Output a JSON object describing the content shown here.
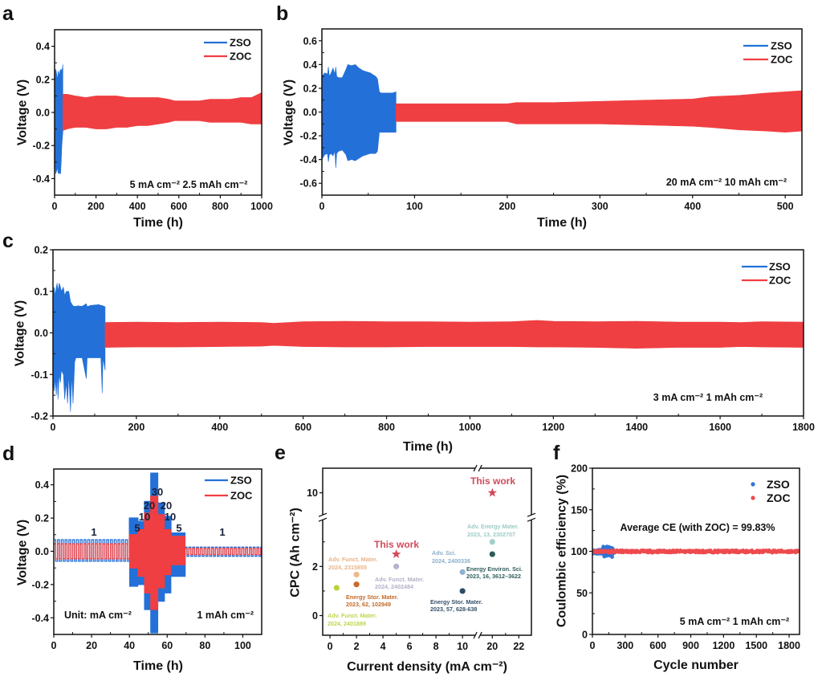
{
  "chart_data": [
    {
      "panel": "a",
      "type": "area",
      "title": "",
      "xlabel": "Time (h)",
      "ylabel": "Voltage (V)",
      "xlim": [
        0,
        1000
      ],
      "ylim": [
        -0.5,
        0.5
      ],
      "grid": false,
      "legend": "top-right",
      "xticks": [
        0,
        200,
        400,
        600,
        800,
        1000
      ],
      "xtick_labels": [
        "0",
        "200",
        "400",
        "600",
        "800",
        "1000"
      ],
      "yticks": [
        -0.4,
        -0.2,
        0,
        0.2,
        0.4
      ],
      "ytick_labels": [
        "-0.4",
        "-0.2",
        "0.0",
        "0.2",
        "0.4"
      ],
      "annotation": "5 mA cm⁻² 2.5 mAh cm⁻²",
      "series": [
        {
          "name": "ZSO",
          "color": "#2370d8",
          "x": [
            0,
            2,
            5,
            8,
            11,
            14,
            17,
            20,
            23,
            26,
            29,
            32,
            35,
            38,
            40
          ],
          "upper": [
            0.1,
            0.25,
            0.26,
            0.25,
            0.22,
            0.2,
            0.25,
            0.24,
            0.22,
            0.25,
            0.26,
            0.25,
            0.26,
            0.27,
            0.29
          ],
          "lower": [
            -0.15,
            -0.3,
            -0.37,
            -0.36,
            -0.35,
            -0.33,
            -0.37,
            -0.36,
            -0.37,
            -0.37,
            -0.37,
            -0.3,
            -0.2,
            -0.15,
            -0.12
          ]
        },
        {
          "name": "ZOC",
          "color": "#ef3f42",
          "x": [
            40,
            60,
            100,
            150,
            200,
            250,
            300,
            350,
            400,
            450,
            500,
            550,
            580,
            650,
            700,
            750,
            800,
            850,
            900,
            950,
            1000
          ],
          "upper": [
            0.11,
            0.11,
            0.1,
            0.09,
            0.1,
            0.1,
            0.1,
            0.09,
            0.09,
            0.09,
            0.09,
            0.08,
            0.07,
            0.07,
            0.07,
            0.08,
            0.08,
            0.08,
            0.09,
            0.09,
            0.12
          ],
          "lower": [
            -0.11,
            -0.1,
            -0.09,
            -0.09,
            -0.1,
            -0.1,
            -0.09,
            -0.09,
            -0.08,
            -0.08,
            -0.07,
            -0.06,
            -0.05,
            -0.05,
            -0.05,
            -0.06,
            -0.06,
            -0.06,
            -0.06,
            -0.07,
            -0.07
          ]
        }
      ]
    },
    {
      "panel": "b",
      "type": "area",
      "title": "",
      "xlabel": "Time (h)",
      "ylabel": "Voltage (V)",
      "xlim": [
        0,
        518
      ],
      "ylim": [
        -0.7,
        0.7
      ],
      "grid": false,
      "legend": "top-right",
      "xticks": [
        0,
        100,
        200,
        300,
        400,
        500
      ],
      "xtick_labels": [
        "0",
        "100",
        "200",
        "300",
        "400",
        "500"
      ],
      "yticks": [
        -0.6,
        -0.4,
        -0.2,
        0,
        0.2,
        0.4,
        0.6
      ],
      "ytick_labels": [
        "-0.6",
        "-0.4",
        "-0.2",
        "0.0",
        "0.2",
        "0.4",
        "0.6"
      ],
      "annotation": "20 mA cm⁻² 10 mAh cm⁻²",
      "series": [
        {
          "name": "ZSO",
          "color": "#2370d8",
          "x": [
            0,
            3,
            6,
            7,
            8,
            10,
            12,
            14,
            15,
            16,
            18,
            22,
            26,
            28,
            32,
            36,
            40,
            44,
            48,
            52,
            58,
            60,
            62,
            64,
            70,
            76,
            80
          ],
          "upper": [
            0.3,
            0.33,
            0.32,
            0.38,
            0.3,
            0.33,
            0.37,
            0.32,
            0.38,
            0.3,
            0.29,
            0.29,
            0.36,
            0.4,
            0.39,
            0.4,
            0.37,
            0.35,
            0.34,
            0.33,
            0.3,
            0.28,
            0.17,
            0.16,
            0.16,
            0.16,
            0.17
          ],
          "lower": [
            -0.4,
            -0.36,
            -0.35,
            -0.42,
            -0.36,
            -0.35,
            -0.37,
            -0.33,
            -0.47,
            -0.35,
            -0.33,
            -0.32,
            -0.36,
            -0.41,
            -0.4,
            -0.41,
            -0.39,
            -0.37,
            -0.36,
            -0.35,
            -0.35,
            -0.33,
            -0.17,
            -0.17,
            -0.17,
            -0.17,
            -0.17
          ]
        },
        {
          "name": "ZOC",
          "color": "#ef3f42",
          "x": [
            80,
            100,
            150,
            200,
            210,
            250,
            300,
            350,
            400,
            420,
            450,
            480,
            500,
            518
          ],
          "upper": [
            0.07,
            0.07,
            0.07,
            0.07,
            0.08,
            0.08,
            0.09,
            0.1,
            0.11,
            0.13,
            0.14,
            0.16,
            0.17,
            0.18
          ],
          "lower": [
            -0.08,
            -0.08,
            -0.08,
            -0.08,
            -0.1,
            -0.1,
            -0.1,
            -0.11,
            -0.12,
            -0.13,
            -0.15,
            -0.16,
            -0.17,
            -0.16
          ]
        }
      ]
    },
    {
      "panel": "c",
      "type": "area",
      "title": "",
      "xlabel": "Time (h)",
      "ylabel": "Voltage (V)",
      "xlim": [
        0,
        1800
      ],
      "ylim": [
        -0.2,
        0.2
      ],
      "grid": false,
      "legend": "top-right",
      "xticks": [
        0,
        200,
        400,
        600,
        800,
        1000,
        1200,
        1400,
        1600,
        1800
      ],
      "xtick_labels": [
        "0",
        "200",
        "400",
        "600",
        "800",
        "1000",
        "1200",
        "1400",
        "1600",
        "1800"
      ],
      "yticks": [
        -0.2,
        -0.1,
        0,
        0.1,
        0.2
      ],
      "ytick_labels": [
        "-0.2",
        "-0.1",
        "0.0",
        "0.1",
        "0.2"
      ],
      "annotation": "3 mA cm⁻² 1 mAh cm⁻²",
      "series": [
        {
          "name": "ZSO",
          "color": "#2370d8",
          "x": [
            0,
            3,
            5,
            8,
            10,
            12,
            15,
            18,
            20,
            25,
            28,
            32,
            35,
            38,
            42,
            45,
            48,
            52,
            55,
            60,
            70,
            80,
            82,
            90,
            100,
            110,
            115,
            118,
            120,
            125
          ],
          "upper": [
            0.1,
            0.11,
            0.09,
            0.11,
            0.12,
            0.1,
            0.12,
            0.11,
            0.1,
            0.11,
            0.09,
            0.1,
            0.1,
            0.1,
            0.075,
            0.07,
            0.065,
            0.064,
            0.064,
            0.065,
            0.064,
            0.07,
            0.063,
            0.066,
            0.067,
            0.068,
            0.066,
            0.066,
            0.065,
            0.063
          ],
          "lower": [
            -0.12,
            -0.14,
            -0.11,
            -0.15,
            -0.1,
            -0.16,
            -0.1,
            -0.12,
            -0.09,
            -0.1,
            -0.16,
            -0.12,
            -0.17,
            -0.1,
            -0.19,
            -0.1,
            -0.17,
            -0.07,
            -0.06,
            -0.06,
            -0.06,
            -0.11,
            -0.06,
            -0.06,
            -0.06,
            -0.06,
            -0.06,
            -0.145,
            -0.06,
            -0.09
          ]
        },
        {
          "name": "ZOC",
          "color": "#ef3f42",
          "x": [
            125,
            200,
            300,
            400,
            500,
            530,
            600,
            700,
            800,
            900,
            1000,
            1100,
            1160,
            1200,
            1300,
            1400,
            1500,
            1600,
            1650,
            1700,
            1800
          ],
          "upper": [
            0.025,
            0.026,
            0.025,
            0.026,
            0.025,
            0.023,
            0.027,
            0.028,
            0.027,
            0.027,
            0.026,
            0.027,
            0.03,
            0.028,
            0.027,
            0.028,
            0.026,
            0.026,
            0.025,
            0.027,
            0.026
          ],
          "lower": [
            -0.035,
            -0.034,
            -0.034,
            -0.033,
            -0.032,
            -0.03,
            -0.033,
            -0.034,
            -0.034,
            -0.033,
            -0.033,
            -0.033,
            -0.034,
            -0.034,
            -0.035,
            -0.037,
            -0.035,
            -0.035,
            -0.033,
            -0.034,
            -0.035
          ]
        }
      ]
    },
    {
      "panel": "d",
      "type": "line",
      "title": "",
      "xlabel": "Time (h)",
      "ylabel": "Voltage (V)",
      "xlim": [
        0,
        110
      ],
      "ylim": [
        -0.5,
        0.495
      ],
      "grid": false,
      "legend": "top-right",
      "xticks": [
        0,
        20,
        40,
        60,
        80,
        100
      ],
      "xtick_labels": [
        "0",
        "20",
        "40",
        "60",
        "80",
        "100"
      ],
      "yticks": [
        -0.4,
        -0.2,
        0,
        0.2,
        0.4
      ],
      "ytick_labels": [
        "-0.4",
        "-0.2",
        "0.0",
        "0.2",
        "0.4"
      ],
      "unit_note": "Unit: mA cm⁻²",
      "capacity_note": "1 mAh cm⁻²",
      "current_labels": [
        "1",
        "5",
        "10",
        "20",
        "30",
        "20",
        "10",
        "5",
        "1"
      ],
      "series": [
        {
          "name": "ZSO",
          "color": "#2370d8",
          "segments": [
            {
              "t": [
                0,
                40
              ],
              "current": 1,
              "upper": 0.07,
              "lower": -0.06
            },
            {
              "t": [
                40,
                44.5
              ],
              "current": 5,
              "upper": 0.2,
              "lower": -0.21
            },
            {
              "t": [
                44.5,
                48
              ],
              "current": 10,
              "upper": 0.18,
              "lower": -0.2
            },
            {
              "t": [
                48,
                51.3
              ],
              "current": 20,
              "upper": 0.3,
              "lower": -0.35
            },
            {
              "t": [
                51.3,
                55
              ],
              "current": 30,
              "upper": 0.47,
              "lower": -0.49
            },
            {
              "t": [
                55,
                58.5
              ],
              "current": 20,
              "upper": 0.29,
              "lower": -0.3
            },
            {
              "t": [
                58.5,
                62
              ],
              "current": 10,
              "upper": 0.21,
              "lower": -0.25
            },
            {
              "t": [
                62,
                69.5
              ],
              "current": 5,
              "upper": 0.11,
              "lower": -0.15
            },
            {
              "t": [
                69.5,
                110
              ],
              "current": 1,
              "upper": 0.025,
              "lower": -0.03
            }
          ]
        },
        {
          "name": "ZOC",
          "color": "#ef3f42",
          "segments": [
            {
              "t": [
                0,
                40
              ],
              "current": 1,
              "upper": 0.045,
              "lower": -0.045
            },
            {
              "t": [
                40,
                44.5
              ],
              "current": 5,
              "upper": 0.1,
              "lower": -0.1
            },
            {
              "t": [
                44.5,
                48
              ],
              "current": 10,
              "upper": 0.13,
              "lower": -0.15
            },
            {
              "t": [
                48,
                51.3
              ],
              "current": 20,
              "upper": 0.23,
              "lower": -0.25
            },
            {
              "t": [
                51.3,
                55
              ],
              "current": 30,
              "upper": 0.33,
              "lower": -0.35
            },
            {
              "t": [
                55,
                58.5
              ],
              "current": 20,
              "upper": 0.22,
              "lower": -0.22
            },
            {
              "t": [
                58.5,
                62
              ],
              "current": 10,
              "upper": 0.13,
              "lower": -0.14
            },
            {
              "t": [
                62,
                69.5
              ],
              "current": 5,
              "upper": 0.09,
              "lower": -0.08
            },
            {
              "t": [
                69.5,
                110
              ],
              "current": 1,
              "upper": 0.018,
              "lower": -0.02
            }
          ]
        }
      ]
    },
    {
      "panel": "e",
      "type": "scatter",
      "title": "",
      "xlabel": "Current density (mA cm⁻²)",
      "ylabel": "CPC (Ah cm⁻²)",
      "x_segments": [
        [
          -0.55,
          11.15
        ],
        [
          18.9,
          22.95
        ]
      ],
      "y_segments": [
        [
          -0.8,
          4.0
        ],
        [
          9,
          11
        ]
      ],
      "grid": false,
      "legend": "none",
      "xticks": [
        0,
        2,
        4,
        6,
        8,
        10,
        20,
        22
      ],
      "xtick_labels": [
        "0",
        "2",
        "4",
        "6",
        "8",
        "10",
        "20",
        "22"
      ],
      "xminor": [
        1,
        3,
        5,
        7,
        9,
        21
      ],
      "yticks": [
        0,
        2,
        10
      ],
      "ytick_labels": [
        "0",
        "2",
        "10"
      ],
      "yminor": [
        1,
        3
      ],
      "points": [
        {
          "x": 0.5,
          "y": 1.13,
          "color": "#b8d43c",
          "label_color": "#bcd84a",
          "marker": "circle",
          "label": [
            "Adv. Funct. Mater.",
            "2024, 2401889"
          ]
        },
        {
          "x": 2,
          "y": 1.67,
          "color": "#ecb98d",
          "label_color": "#e8b48a",
          "marker": "circle",
          "label": [
            "Adv. Funct. Mater.",
            "2024, 2315855"
          ]
        },
        {
          "x": 2,
          "y": 1.27,
          "color": "#c8692a",
          "label_color": "#c46a26",
          "marker": "circle",
          "label": [
            "Energy Stor. Mater.",
            "2023, 62, 102949"
          ]
        },
        {
          "x": 5,
          "y": 2.0,
          "color": "#b7b3cc",
          "label_color": "#b4b0c9",
          "marker": "circle",
          "label": [
            "Adv. Funct. Mater.",
            "2024, 2402484"
          ]
        },
        {
          "x": 5,
          "y": 2.5,
          "color": "#d24a5a",
          "label_color": "#d24a5a",
          "marker": "star",
          "label": [
            "This work"
          ]
        },
        {
          "x": 10,
          "y": 1.77,
          "color": "#8fb2cf",
          "label_color": "#8aaecb",
          "marker": "circle",
          "label": [
            "Adv. Sci.",
            "2024, 2400336"
          ]
        },
        {
          "x": 10,
          "y": 1.0,
          "color": "#2e4c66",
          "label_color": "#34506a",
          "marker": "circle",
          "label": [
            "Energy Stor. Mater.",
            "2023, 57, 628-638"
          ]
        },
        {
          "x": 20,
          "y": 3.0,
          "color": "#a3cfca",
          "label_color": "#9ccac6",
          "marker": "circle",
          "label": [
            "Adv. Energy Mater.",
            "2023, 13, 2302707"
          ]
        },
        {
          "x": 20,
          "y": 2.5,
          "color": "#2d5b58",
          "label_color": "#2f5d5a",
          "marker": "circle",
          "label": [
            "Energy Environ. Sci.",
            "2023, 16, 3612–3622"
          ]
        },
        {
          "x": 20,
          "y": 10,
          "color": "#d24a5a",
          "label_color": "#d24a5a",
          "marker": "star",
          "label": [
            "This work"
          ]
        }
      ]
    },
    {
      "panel": "f",
      "type": "scatter",
      "title": "",
      "xlabel": "Cycle number",
      "ylabel": "Coulombic efficiency (%)",
      "xlim": [
        0,
        1895
      ],
      "ylim": [
        0,
        200
      ],
      "grid": false,
      "legend": "top-right",
      "xticks": [
        0,
        300,
        600,
        900,
        1200,
        1500,
        1800
      ],
      "xtick_labels": [
        "0",
        "300",
        "600",
        "900",
        "1200",
        "1500",
        "1800"
      ],
      "yticks": [
        0,
        50,
        100,
        150,
        200
      ],
      "ytick_labels": [
        "0",
        "50",
        "100",
        "150",
        "200"
      ],
      "annotation": "Average CE (with ZOC) = 99.83%",
      "condition": "5 mA cm⁻² 1 mAh cm⁻²",
      "series": [
        {
          "name": "ZSO",
          "color": "#2f74d6",
          "cycle_range": [
            0,
            210
          ],
          "ce_range": [
            93,
            106
          ]
        },
        {
          "name": "ZOC",
          "color": "#ee4a4e",
          "cycle_range": [
            0,
            1880
          ],
          "ce_mean": 99.83,
          "ce_range": [
            98.3,
            101.3
          ]
        }
      ]
    }
  ]
}
